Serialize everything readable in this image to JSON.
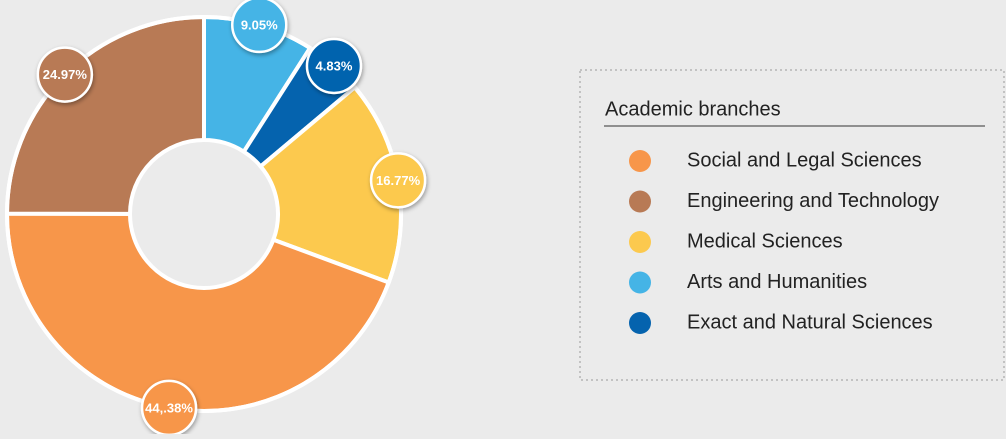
{
  "chart_data": {
    "type": "donut",
    "legend_title": "Academic branches",
    "categories": [
      "Social and Legal Sciences",
      "Engineering and Technology",
      "Medical Sciences",
      "Arts and Humanities",
      "Exact and Natural Sciences"
    ],
    "values": [
      44.38,
      24.97,
      16.77,
      9.05,
      4.83
    ],
    "value_labels": [
      "44,.38%",
      "24.97%",
      "16.77%",
      "9.05%",
      "4.83%"
    ],
    "colors": [
      "#f7964a",
      "#b87a55",
      "#fcc94e",
      "#45b4e6",
      "#0563ae"
    ],
    "legend_position": "right"
  }
}
